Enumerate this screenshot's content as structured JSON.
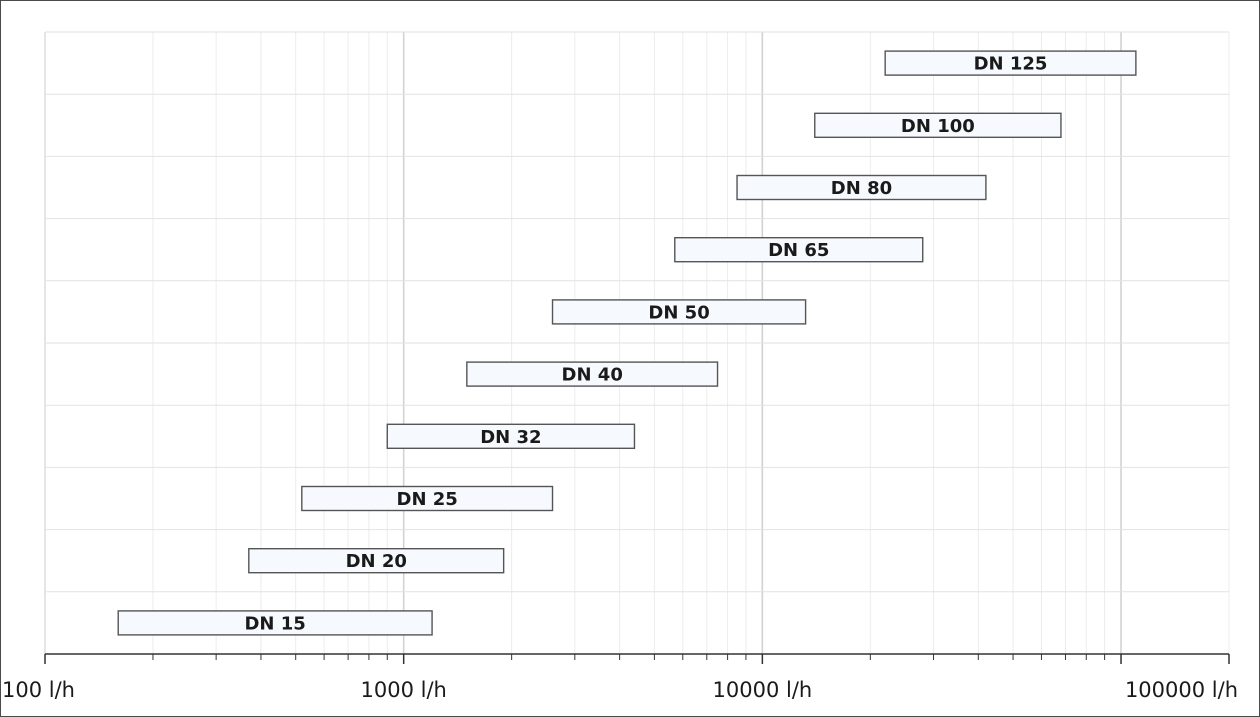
{
  "chart_data": {
    "type": "bar",
    "orientation": "horizontal-range",
    "title": "",
    "xlabel": "",
    "ylabel": "",
    "x_scale": "log",
    "xlim": [
      100,
      200000
    ],
    "grid": true,
    "x_tick_labels": [
      {
        "value": 100,
        "label": "100 l/h"
      },
      {
        "value": 1000,
        "label": "1000 l/h"
      },
      {
        "value": 10000,
        "label": "10000 l/h"
      },
      {
        "value": 100000,
        "label": "100000 l/h"
      }
    ],
    "bars": [
      {
        "label": "DN 125",
        "x_start": 22000,
        "x_end": 110000
      },
      {
        "label": "DN 100",
        "x_start": 14000,
        "x_end": 68000
      },
      {
        "label": "DN 80",
        "x_start": 8500,
        "x_end": 42000
      },
      {
        "label": "DN 65",
        "x_start": 5700,
        "x_end": 28000
      },
      {
        "label": "DN 50",
        "x_start": 2600,
        "x_end": 13200
      },
      {
        "label": "DN 40",
        "x_start": 1500,
        "x_end": 7500
      },
      {
        "label": "DN 32",
        "x_start": 900,
        "x_end": 4400
      },
      {
        "label": "DN 25",
        "x_start": 520,
        "x_end": 2600
      },
      {
        "label": "DN 20",
        "x_start": 370,
        "x_end": 1900
      },
      {
        "label": "DN 15",
        "x_start": 160,
        "x_end": 1200
      }
    ],
    "colors": {
      "bar_fill": "#f6f9fd",
      "bar_stroke": "#555555",
      "grid": "#e2e2e2",
      "axis": "#333333"
    }
  }
}
